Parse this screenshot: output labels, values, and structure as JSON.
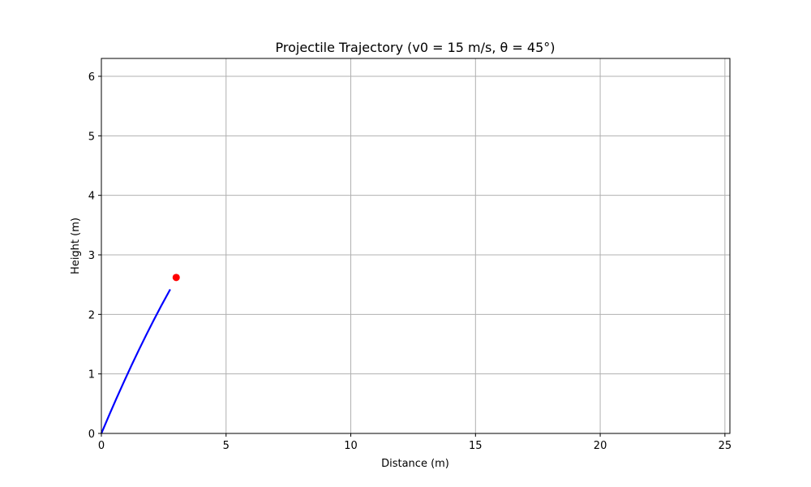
{
  "chart_data": {
    "type": "line",
    "title": "Projectile Trajectory (v0 = 15 m/s, θ = 45°)",
    "xlabel": "Distance (m)",
    "ylabel": "Height (m)",
    "xlim": [
      0,
      25.2
    ],
    "ylim": [
      0,
      6.3
    ],
    "xticks": [
      0,
      5,
      10,
      15,
      20,
      25
    ],
    "yticks": [
      0,
      1,
      2,
      3,
      4,
      5,
      6
    ],
    "grid": true,
    "series": [
      {
        "color": "#0000ff",
        "x": [
          0,
          0.3,
          0.6,
          0.9,
          1.2,
          1.5,
          1.8,
          2.1,
          2.4,
          2.76
        ],
        "y": [
          0,
          0.296,
          0.584,
          0.864,
          1.136,
          1.4,
          1.656,
          1.904,
          2.144,
          2.42
        ]
      }
    ],
    "marker": {
      "x": 3.0,
      "y": 2.62,
      "color": "#ff0000"
    }
  }
}
